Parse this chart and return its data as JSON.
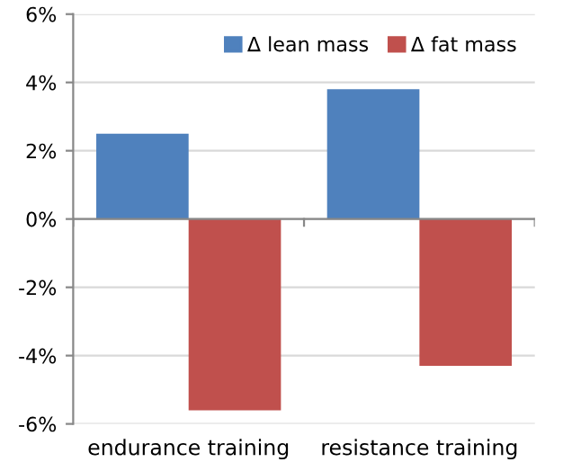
{
  "chart_data": {
    "type": "bar",
    "categories": [
      "endurance training",
      "resistance training"
    ],
    "series": [
      {
        "name": "Δ lean mass",
        "color": "#4f81bd",
        "values": [
          2.5,
          3.8
        ]
      },
      {
        "name": "Δ fat mass",
        "color": "#c0504d",
        "values": [
          -5.6,
          -4.3
        ]
      }
    ],
    "ylim": [
      -6,
      6
    ],
    "yticks": [
      {
        "value": -6,
        "label": "-6%"
      },
      {
        "value": -4,
        "label": "-4%"
      },
      {
        "value": -2,
        "label": "-2%"
      },
      {
        "value": 0,
        "label": "0%"
      },
      {
        "value": 2,
        "label": "2%"
      },
      {
        "value": 4,
        "label": "4%"
      },
      {
        "value": 6,
        "label": "6%"
      }
    ],
    "grid": "y",
    "legend": "top right"
  }
}
